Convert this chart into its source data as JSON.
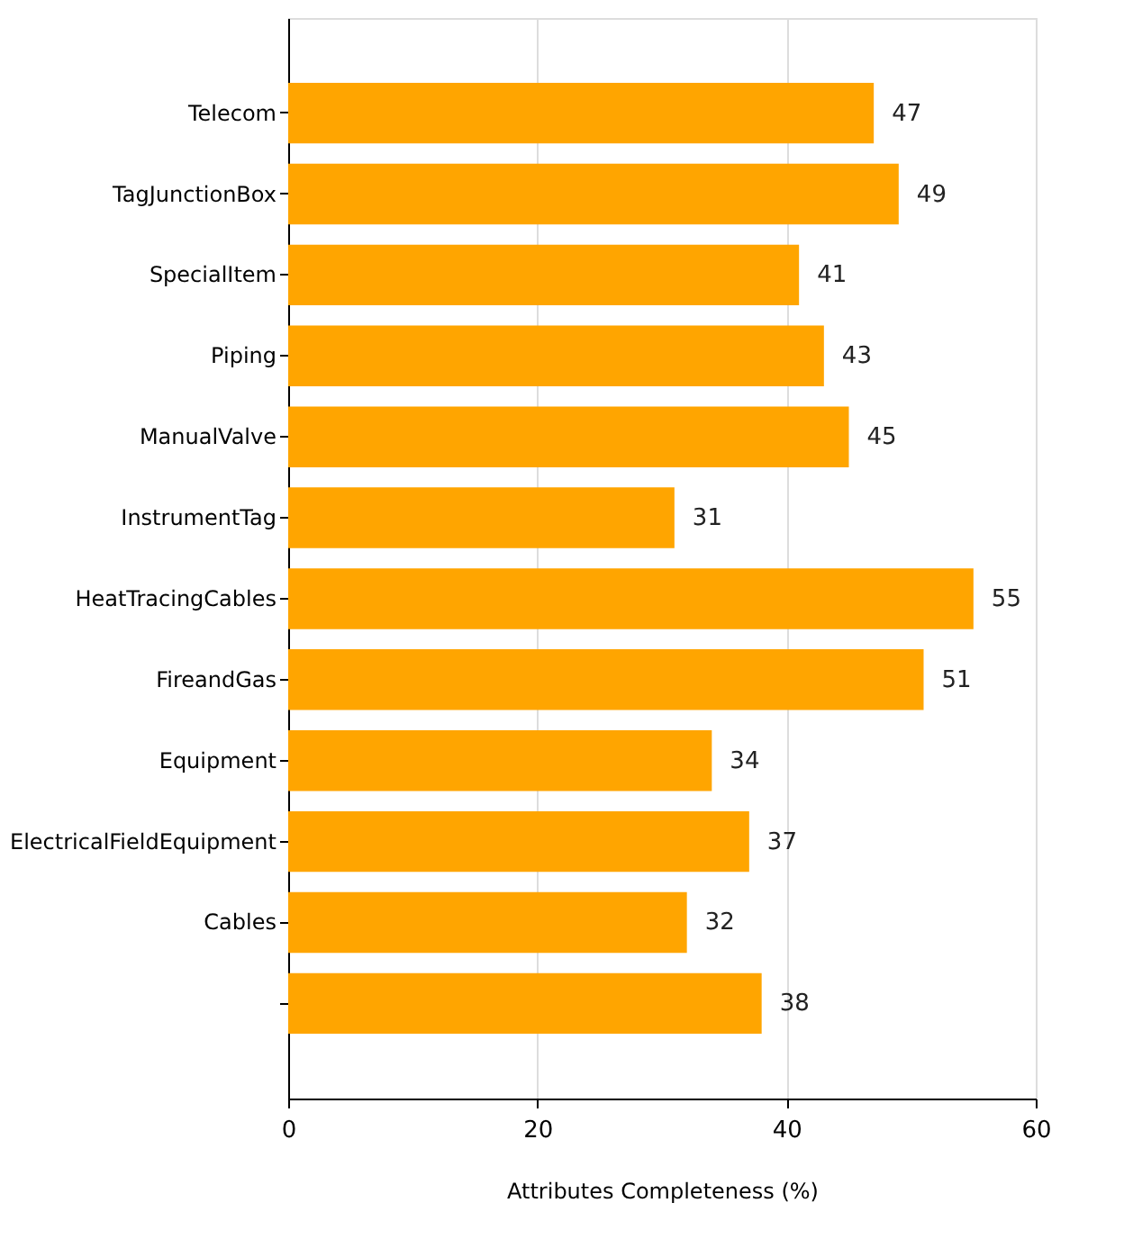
{
  "chart_data": {
    "type": "bar",
    "orientation": "horizontal",
    "xlabel": "Attributes Completeness (%)",
    "categories": [
      "Telecom",
      "TagJunctionBox",
      "SpecialItem",
      "Piping",
      "ManualValve",
      "InstrumentTag",
      "HeatTracingCables",
      "FireandGas",
      "Equipment",
      "ElectricalFieldEquipment",
      "Cables",
      null
    ],
    "values": [
      47,
      49,
      41,
      43,
      45,
      31,
      55,
      51,
      34,
      37,
      32,
      38
    ],
    "color": "#ffa500",
    "xlim": [
      0,
      60
    ],
    "xticks": [
      0,
      20,
      40,
      60
    ],
    "grid": "x",
    "data_labels": true
  }
}
